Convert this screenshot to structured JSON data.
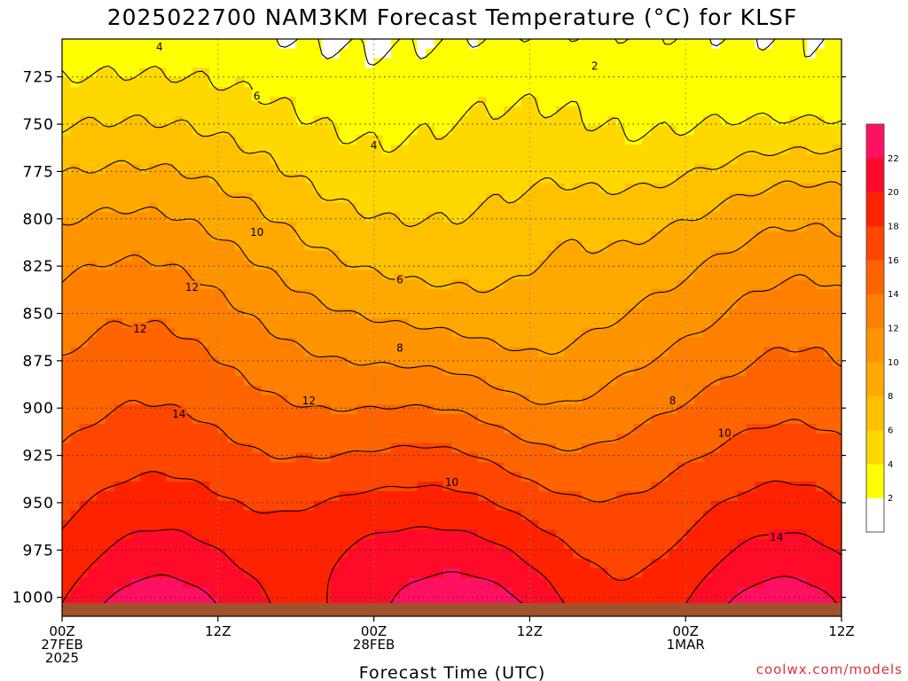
{
  "chart_data": {
    "type": "heatmap",
    "title": "2025022700 NAM3KM Forecast Temperature (°C) for KLSF",
    "xlabel": "Forecast Time (UTC)",
    "ylabel": "",
    "credit": "coolwx.com/models",
    "x_ticks": [
      {
        "hours": 0,
        "lines": [
          "00Z",
          "27FEB",
          "2025"
        ]
      },
      {
        "hours": 12,
        "lines": [
          "12Z"
        ]
      },
      {
        "hours": 24,
        "lines": [
          "00Z",
          "28FEB"
        ]
      },
      {
        "hours": 36,
        "lines": [
          "12Z"
        ]
      },
      {
        "hours": 48,
        "lines": [
          "00Z",
          "1MAR"
        ]
      },
      {
        "hours": 60,
        "lines": [
          "12Z"
        ]
      }
    ],
    "xlim": [
      0,
      60
    ],
    "y_ticks": [
      725,
      750,
      775,
      800,
      825,
      850,
      875,
      900,
      925,
      950,
      975,
      1000
    ],
    "ylim": [
      705,
      1010
    ],
    "y_axis_inverted": true,
    "grid": true,
    "colorbar": {
      "levels": [
        0,
        2,
        4,
        6,
        8,
        10,
        12,
        14,
        16,
        18,
        20,
        22,
        24
      ],
      "tick_labels": [
        "2",
        "4",
        "6",
        "8",
        "10",
        "12",
        "14",
        "16",
        "18",
        "20",
        "22"
      ],
      "colors": [
        "#ffffff",
        "#ffff00",
        "#ffd800",
        "#ffc000",
        "#ffa800",
        "#ff9400",
        "#ff8000",
        "#ff6400",
        "#ff4600",
        "#ff2200",
        "#ff0a28",
        "#ff1060"
      ]
    },
    "contour_labels": [
      {
        "text": "4",
        "h": 7.5,
        "p": 709
      },
      {
        "text": "2",
        "h": 41,
        "p": 719
      },
      {
        "text": "6",
        "h": 15,
        "p": 735
      },
      {
        "text": "4",
        "h": 24,
        "p": 761
      },
      {
        "text": "10",
        "h": 15,
        "p": 807
      },
      {
        "text": "6",
        "h": 26,
        "p": 832
      },
      {
        "text": "12",
        "h": 10,
        "p": 836
      },
      {
        "text": "12",
        "h": 6,
        "p": 858
      },
      {
        "text": "8",
        "h": 26,
        "p": 868
      },
      {
        "text": "12",
        "h": 19,
        "p": 896
      },
      {
        "text": "8",
        "h": 47,
        "p": 896
      },
      {
        "text": "14",
        "h": 9,
        "p": 903
      },
      {
        "text": "10",
        "h": 51,
        "p": 913
      },
      {
        "text": "10",
        "h": 30,
        "p": 939
      },
      {
        "text": "14",
        "h": 55,
        "p": 968
      }
    ],
    "terrain": {
      "surface_pressure": 1003,
      "color": "#a0522d"
    }
  }
}
